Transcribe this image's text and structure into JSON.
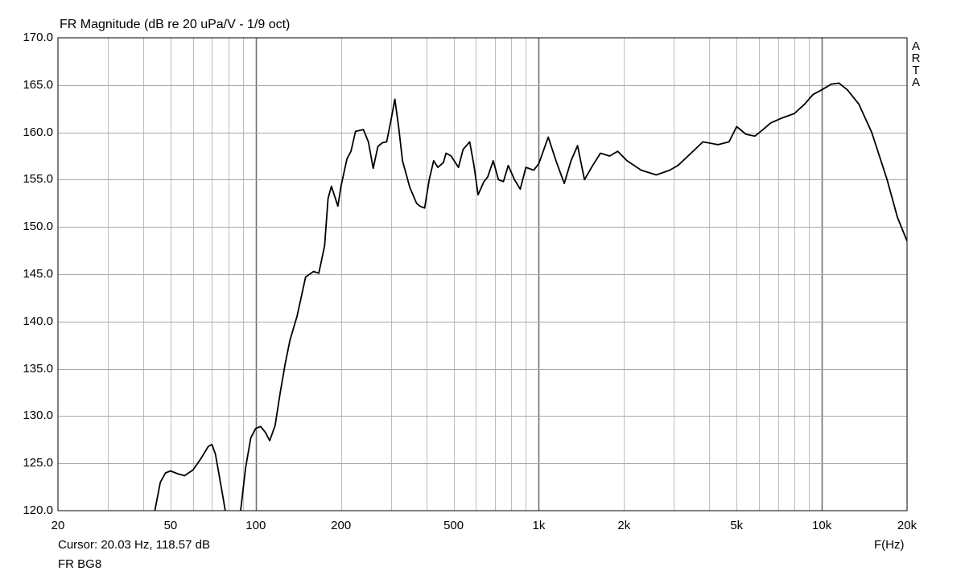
{
  "chart_data": {
    "type": "line",
    "title": "FR Magnitude (dB re 20 uPa/V - 1/9 oct)",
    "xlabel": "F(Hz)",
    "ylabel": "",
    "xscale": "log",
    "xlim": [
      20,
      20000
    ],
    "ylim": [
      120,
      170
    ],
    "grid": true,
    "x_ticks": [
      20,
      50,
      100,
      200,
      500,
      1000,
      2000,
      5000,
      10000,
      20000
    ],
    "x_tick_labels": [
      "20",
      "50",
      "100",
      "200",
      "500",
      "1k",
      "2k",
      "5k",
      "10k",
      "20k"
    ],
    "y_ticks": [
      120,
      125,
      130,
      135,
      140,
      145,
      150,
      155,
      160,
      165,
      170
    ],
    "y_tick_labels": [
      "120.0",
      "125.0",
      "130.0",
      "135.0",
      "140.0",
      "145.0",
      "150.0",
      "155.0",
      "160.0",
      "165.0",
      "170.0"
    ],
    "series": [
      {
        "color": "#000000",
        "x": [
          44,
          46,
          48,
          50,
          53,
          56,
          60,
          64,
          68,
          70,
          72,
          74,
          76,
          78,
          80,
          88,
          92,
          96,
          100,
          104,
          108,
          112,
          117,
          122,
          127,
          132,
          140,
          150,
          160,
          167,
          175,
          180,
          185,
          195,
          200,
          210,
          217,
          225,
          240,
          250,
          260,
          270,
          280,
          290,
          300,
          310,
          320,
          330,
          350,
          370,
          380,
          395,
          410,
          425,
          440,
          460,
          470,
          490,
          520,
          540,
          570,
          590,
          610,
          640,
          660,
          690,
          720,
          750,
          780,
          820,
          860,
          900,
          960,
          1000,
          1080,
          1150,
          1230,
          1300,
          1370,
          1450,
          1550,
          1650,
          1780,
          1900,
          2050,
          2300,
          2600,
          2900,
          3100,
          3450,
          3800,
          4300,
          4700,
          5000,
          5400,
          5800,
          6200,
          6600,
          7200,
          8000,
          8700,
          9300,
          10000,
          10800,
          11500,
          12300,
          13500,
          15000,
          17000,
          18500,
          20000
        ],
        "y": [
          120.0,
          123.0,
          124.0,
          124.2,
          123.9,
          123.7,
          124.3,
          125.5,
          126.8,
          127.0,
          126.0,
          124.0,
          122.0,
          120.0,
          118.8,
          119.5,
          124.5,
          127.7,
          128.7,
          128.9,
          128.3,
          127.4,
          129.0,
          132.5,
          135.5,
          138.0,
          140.6,
          144.7,
          145.3,
          145.1,
          148.0,
          153.0,
          154.3,
          152.2,
          154.3,
          157.2,
          158.0,
          160.1,
          160.3,
          159.0,
          156.2,
          158.5,
          158.9,
          159.0,
          161.2,
          163.5,
          160.5,
          157.0,
          154.2,
          152.5,
          152.2,
          152.0,
          155.0,
          157.0,
          156.3,
          156.8,
          157.8,
          157.5,
          156.3,
          158.2,
          159.0,
          156.5,
          153.4,
          154.8,
          155.3,
          157.0,
          155.0,
          154.8,
          156.5,
          155.0,
          154.0,
          156.3,
          156.0,
          156.7,
          159.5,
          157.0,
          154.6,
          157.0,
          158.6,
          155.0,
          156.5,
          157.8,
          157.5,
          158.0,
          157.0,
          156.0,
          155.5,
          156.0,
          156.5,
          157.8,
          159.0,
          158.7,
          159.0,
          160.6,
          159.8,
          159.6,
          160.3,
          161.0,
          161.5,
          162.0,
          163.0,
          164.0,
          164.5,
          165.1,
          165.2,
          164.5,
          163.0,
          160.0,
          155.0,
          151.0,
          148.5
        ]
      }
    ]
  },
  "brand_letters": [
    "A",
    "R",
    "T",
    "A"
  ],
  "cursor_readout": "Cursor: 20.03 Hz, 118.57 dB",
  "trace_name": "FR BG8"
}
